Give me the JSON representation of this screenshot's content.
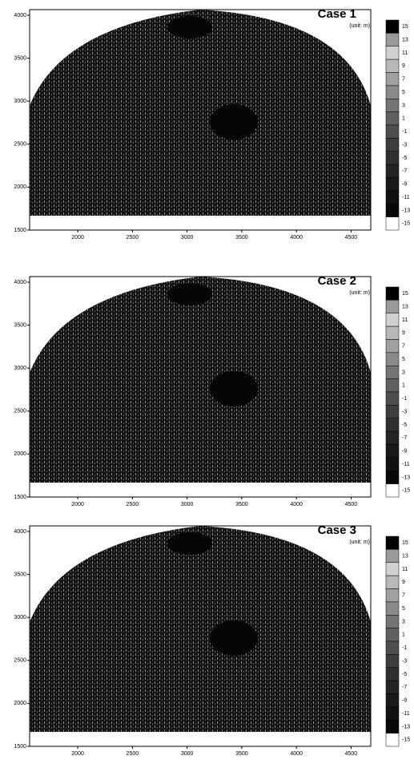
{
  "chart_data": [
    {
      "type": "heatmap",
      "title": "Case 1",
      "unit": "(unit: m)",
      "xlim": [
        1560,
        4680
      ],
      "ylim": [
        1500,
        4065
      ],
      "xticks": [
        2000,
        2500,
        3000,
        3500,
        4000,
        4500
      ],
      "yticks": [
        1500,
        2000,
        2500,
        3000,
        3500,
        4000
      ],
      "colorbar_ticks": [
        15,
        13,
        11,
        9,
        7,
        5,
        3,
        1,
        -1,
        -3,
        -5,
        -7,
        -9,
        -11,
        -13,
        -15
      ],
      "colorbar_colors": [
        "#000000",
        "#9a9a9a",
        "#d0d0d0",
        "#b8b8b8",
        "#a0a0a0",
        "#8a8a8a",
        "#747474",
        "#606060",
        "#4e4e4e",
        "#3e3e3e",
        "#303030",
        "#242424",
        "#1a1a1a",
        "#111111",
        "#080808",
        "#ffffff"
      ]
    },
    {
      "type": "heatmap",
      "title": "Case 2",
      "unit": "(unit: m)",
      "xlim": [
        1560,
        4680
      ],
      "ylim": [
        1500,
        4065
      ],
      "xticks": [
        2000,
        2500,
        3000,
        3500,
        4000,
        4500
      ],
      "yticks": [
        1500,
        2000,
        2500,
        3000,
        3500,
        4000
      ],
      "colorbar_ticks": [
        15,
        13,
        11,
        9,
        7,
        5,
        3,
        1,
        -1,
        -3,
        -5,
        -7,
        -9,
        -11,
        -13,
        -15
      ],
      "colorbar_colors": [
        "#000000",
        "#9a9a9a",
        "#d0d0d0",
        "#b8b8b8",
        "#a0a0a0",
        "#8a8a8a",
        "#747474",
        "#606060",
        "#4e4e4e",
        "#3e3e3e",
        "#303030",
        "#242424",
        "#1a1a1a",
        "#111111",
        "#080808",
        "#ffffff"
      ]
    },
    {
      "type": "heatmap",
      "title": "Case 3",
      "unit": "(unit: m)",
      "xlim": [
        1560,
        4680
      ],
      "ylim": [
        1500,
        4065
      ],
      "xticks": [
        2000,
        2500,
        3000,
        3500,
        4000,
        4500
      ],
      "yticks": [
        1500,
        2000,
        2500,
        3000,
        3500,
        4000
      ],
      "colorbar_ticks": [
        15,
        13,
        11,
        9,
        7,
        5,
        3,
        1,
        -1,
        -3,
        -5,
        -7,
        -9,
        -11,
        -13,
        -15
      ],
      "colorbar_colors": [
        "#000000",
        "#9a9a9a",
        "#d0d0d0",
        "#b8b8b8",
        "#a0a0a0",
        "#8a8a8a",
        "#747474",
        "#606060",
        "#4e4e4e",
        "#3e3e3e",
        "#303030",
        "#242424",
        "#1a1a1a",
        "#111111",
        "#080808",
        "#ffffff"
      ]
    }
  ]
}
